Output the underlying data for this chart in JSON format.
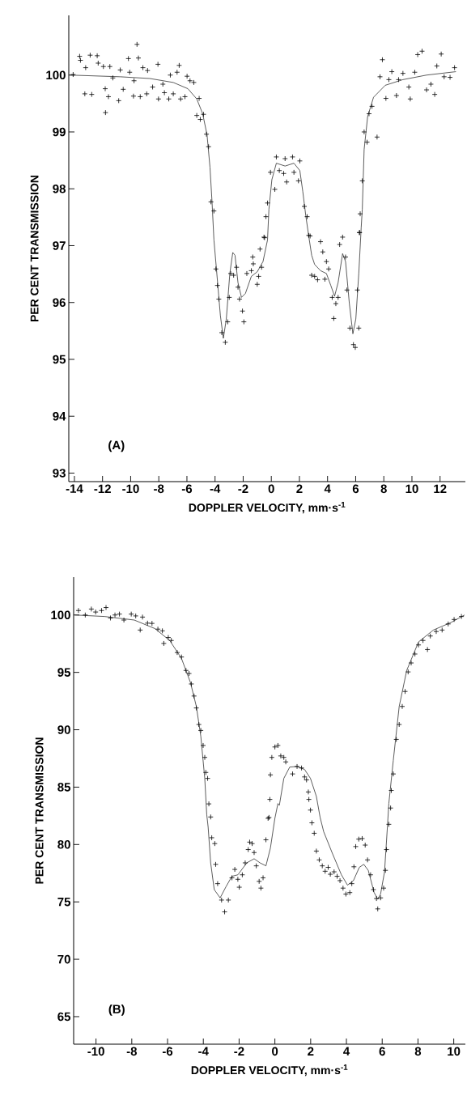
{
  "chart_data": [
    {
      "type": "scatter",
      "xlabel": "DOPPLER VELOCITY, mm·s$^{-1}$",
      "ylabel": "PER CENT TRANSMISSION",
      "annotations": [
        "(A)"
      ],
      "xlim": [
        -14.4,
        13.8
      ],
      "ylim": [
        92.85,
        101.05
      ],
      "xticks": [
        -14,
        -12,
        -10,
        -8,
        -6,
        -4,
        -2,
        0,
        2,
        4,
        6,
        8,
        10,
        12
      ],
      "yticks": [
        93,
        94,
        95,
        96,
        97,
        98,
        99,
        100
      ],
      "series": [
        {
          "color": "#000000",
          "marker": "cross",
          "x": [
            -14.09,
            -13.63,
            -13.57,
            -13.26,
            -13.2,
            -12.88,
            -12.77,
            -12.38,
            -12.31,
            -11.94,
            -11.81,
            -11.79,
            -11.58,
            -11.48,
            -11.27,
            -10.85,
            -10.74,
            -10.53,
            -10.16,
            -10.07,
            -9.8,
            -9.76,
            -9.55,
            -9.45,
            -9.32,
            -9.13,
            -8.86,
            -8.8,
            -8.44,
            -8.06,
            -8.02,
            -7.71,
            -7.6,
            -7.29,
            -7.18,
            -6.97,
            -6.7,
            -6.55,
            -6.45,
            -6.14,
            -5.99,
            -5.78,
            -5.51,
            -5.13,
            -5.3,
            -5.05,
            -4.82,
            -4.61,
            -4.46,
            -4.29,
            -4.08,
            -3.94,
            -3.83,
            -3.73,
            -3.52,
            -3.27,
            -3.1,
            -2.99,
            -2.89,
            -2.68,
            -2.47,
            -2.37,
            -2.26,
            -2.05,
            -1.95,
            -1.74,
            -1.42,
            -1.32,
            -1.28,
            -1.0,
            -0.9,
            -0.8,
            -0.69,
            -0.52,
            -0.48,
            -0.38,
            -0.27,
            -0.06,
            0.25,
            0.36,
            0.57,
            0.88,
            1.09,
            0.98,
            1.51,
            1.61,
            1.93,
            2.03,
            2.35,
            2.55,
            2.76,
            2.66,
            2.87,
            3.08,
            3.29,
            3.5,
            3.66,
            3.81,
            3.92,
            4.08,
            4.33,
            4.44,
            4.59,
            4.75,
            4.86,
            5.07,
            5.28,
            5.38,
            5.59,
            5.84,
            5.97,
            6.22,
            6.12,
            6.28,
            6.26,
            6.32,
            6.47,
            6.6,
            6.81,
            6.95,
            7.16,
            7.52,
            7.73,
            7.9,
            8.15,
            8.36,
            8.57,
            8.9,
            9.05,
            9.36,
            9.78,
            9.88,
            10.2,
            10.41,
            10.72,
            11.04,
            11.35,
            11.62,
            11.77,
            12.08,
            12.29,
            12.71,
            13.03
          ],
          "values": [
            100.01,
            100.33,
            100.26,
            99.67,
            100.13,
            100.35,
            99.66,
            100.34,
            100.21,
            100.15,
            99.76,
            99.34,
            99.62,
            100.15,
            99.95,
            99.55,
            100.09,
            99.75,
            100.29,
            100.05,
            99.63,
            99.9,
            100.54,
            100.3,
            99.62,
            100.13,
            99.67,
            100.08,
            99.79,
            100.19,
            99.58,
            99.84,
            99.69,
            99.58,
            100.0,
            99.67,
            100.05,
            100.17,
            99.58,
            99.62,
            99.98,
            99.9,
            99.87,
            99.59,
            99.29,
            99.22,
            99.31,
            98.96,
            98.74,
            97.77,
            97.61,
            96.59,
            96.3,
            96.06,
            95.47,
            95.3,
            95.66,
            96.09,
            96.51,
            96.48,
            96.62,
            96.27,
            96.06,
            95.85,
            95.66,
            96.51,
            96.56,
            96.8,
            96.68,
            96.32,
            96.46,
            96.94,
            96.62,
            97.15,
            97.14,
            97.51,
            97.75,
            98.29,
            97.99,
            98.56,
            98.32,
            98.27,
            98.12,
            98.53,
            98.56,
            98.29,
            98.14,
            98.49,
            97.69,
            97.51,
            97.17,
            97.18,
            96.48,
            96.46,
            96.4,
            97.07,
            96.89,
            96.41,
            96.72,
            96.59,
            96.09,
            95.72,
            95.98,
            96.09,
            97.02,
            97.15,
            96.8,
            96.22,
            95.55,
            95.26,
            95.21,
            95.55,
            96.22,
            97.23,
            97.23,
            97.56,
            98.14,
            99.0,
            98.82,
            99.32,
            99.45,
            98.91,
            99.97,
            100.27,
            99.59,
            99.92,
            100.06,
            99.64,
            99.92,
            100.03,
            99.79,
            99.58,
            100.05,
            100.36,
            100.42,
            99.74,
            99.84,
            99.66,
            100.16,
            100.37,
            99.97,
            99.96,
            100.13
          ]
        },
        {
          "type": "line",
          "color": "#333333",
          "marker": "none",
          "line_style": "solid",
          "x": [
            -14.3,
            -10.74,
            -8.65,
            -6.97,
            -5.93,
            -5.3,
            -4.88,
            -4.57,
            -4.36,
            -4.21,
            -4.08,
            -3.87,
            -3.62,
            -3.41,
            -3.2,
            -2.95,
            -2.74,
            -2.58,
            -2.37,
            -2.12,
            -1.84,
            -1.42,
            -1.0,
            -0.59,
            -0.27,
            -0.17,
            0.04,
            0.36,
            0.98,
            1.61,
            2.03,
            2.24,
            2.45,
            2.66,
            2.87,
            3.08,
            3.5,
            3.92,
            4.23,
            4.5,
            4.75,
            5.07,
            5.28,
            5.55,
            5.8,
            6.01,
            6.22,
            6.39,
            6.47,
            6.6,
            6.85,
            7.27,
            8.1,
            9.36,
            11.04,
            13.13
          ],
          "values": [
            100.0,
            99.97,
            99.94,
            99.87,
            99.76,
            99.58,
            99.32,
            98.95,
            98.38,
            97.75,
            97.1,
            96.5,
            95.77,
            95.37,
            95.71,
            96.51,
            96.88,
            96.83,
            96.35,
            96.09,
            96.16,
            96.46,
            96.54,
            96.72,
            97.1,
            97.64,
            98.16,
            98.45,
            98.4,
            98.45,
            98.32,
            97.95,
            97.53,
            97.17,
            96.83,
            96.67,
            96.56,
            96.51,
            96.3,
            96.11,
            96.35,
            96.86,
            96.72,
            95.98,
            95.45,
            95.71,
            96.51,
            97.31,
            97.64,
            98.69,
            99.27,
            99.61,
            99.82,
            99.92,
            100.0,
            100.06
          ]
        }
      ]
    },
    {
      "type": "scatter",
      "xlabel": "DOPPLER VELOCITY, mm·s$^{-1}$",
      "ylabel": "PER CENT TRANSMISSION",
      "annotations": [
        "(B)"
      ],
      "xlim": [
        -11.25,
        10.65
      ],
      "ylim": [
        62.6,
        103.3
      ],
      "xticks": [
        -10,
        -8,
        -6,
        -4,
        -2,
        0,
        2,
        4,
        6,
        8,
        10
      ],
      "yticks": [
        65,
        70,
        75,
        80,
        85,
        90,
        95,
        100
      ],
      "series": [
        {
          "color": "#000000",
          "marker": "cross",
          "x": [
            -10.98,
            -10.6,
            -10.26,
            -10.02,
            -9.69,
            -9.44,
            -9.19,
            -8.94,
            -8.69,
            -8.44,
            -8.03,
            -7.78,
            -7.53,
            -7.4,
            -7.12,
            -6.87,
            -6.54,
            -6.29,
            -6.21,
            -5.96,
            -5.79,
            -5.46,
            -5.22,
            -4.97,
            -4.8,
            -4.67,
            -4.52,
            -4.39,
            -4.25,
            -4.14,
            -4.01,
            -3.92,
            -3.86,
            -3.76,
            -3.69,
            -3.59,
            -3.53,
            -3.36,
            -3.31,
            -3.2,
            -2.98,
            -2.81,
            -2.6,
            -2.4,
            -2.24,
            -2.07,
            -1.99,
            -1.82,
            -1.66,
            -1.49,
            -1.41,
            -1.27,
            -1.16,
            -1.04,
            -0.88,
            -0.78,
            -0.66,
            -0.5,
            -0.38,
            -0.33,
            -0.28,
            -0.25,
            -0.17,
            0.0,
            0.17,
            0.33,
            0.5,
            0.61,
            0.99,
            1.24,
            1.49,
            1.66,
            1.77,
            1.87,
            1.9,
            1.99,
            2.07,
            2.2,
            2.32,
            2.48,
            2.65,
            2.81,
            2.98,
            3.1,
            3.31,
            3.48,
            3.64,
            3.81,
            3.97,
            4.19,
            4.3,
            4.42,
            4.52,
            4.69,
            4.88,
            5.05,
            5.18,
            5.35,
            5.51,
            5.68,
            5.75,
            5.91,
            6.08,
            6.18,
            6.24,
            6.37,
            6.47,
            6.51,
            6.62,
            6.79,
            6.95,
            7.12,
            7.28,
            7.45,
            7.62,
            7.83,
            8.03,
            8.28,
            8.53,
            8.69,
            9.02,
            9.35,
            9.69,
            10.02,
            10.43
          ],
          "values": [
            100.39,
            100.0,
            100.52,
            100.26,
            100.39,
            100.65,
            99.74,
            100.0,
            100.08,
            99.56,
            100.08,
            99.92,
            98.69,
            99.82,
            99.29,
            99.27,
            98.77,
            98.62,
            97.52,
            98.04,
            97.78,
            96.73,
            96.34,
            95.17,
            94.9,
            93.99,
            92.94,
            91.9,
            90.46,
            89.94,
            88.63,
            87.59,
            86.28,
            85.76,
            83.54,
            82.4,
            80.59,
            80.08,
            78.27,
            76.59,
            75.16,
            74.13,
            75.16,
            77.1,
            77.83,
            76.97,
            76.28,
            77.36,
            78.4,
            79.56,
            80.21,
            80.08,
            79.3,
            78.14,
            76.79,
            76.2,
            77.1,
            80.41,
            82.28,
            82.36,
            83.93,
            86.07,
            87.59,
            88.5,
            88.63,
            87.72,
            87.59,
            87.2,
            86.15,
            86.8,
            86.67,
            85.89,
            85.63,
            84.58,
            83.93,
            83.0,
            81.89,
            80.98,
            79.43,
            78.66,
            78.14,
            77.67,
            78.01,
            77.41,
            77.62,
            77.23,
            76.85,
            76.2,
            75.68,
            75.81,
            76.59,
            78.06,
            79.82,
            80.47,
            80.52,
            79.95,
            78.66,
            77.36,
            76.07,
            75.29,
            74.39,
            75.35,
            76.2,
            77.75,
            79.56,
            81.76,
            83.18,
            84.71,
            86.15,
            89.16,
            90.46,
            92.03,
            93.34,
            95.04,
            95.82,
            96.6,
            97.39,
            97.78,
            96.99,
            98.17,
            98.56,
            98.69,
            99.22,
            99.61,
            99.87
          ]
        },
        {
          "type": "line",
          "color": "#333333",
          "marker": "none",
          "line_style": "solid",
          "x": [
            -11.18,
            -9.52,
            -7.86,
            -6.71,
            -5.88,
            -5.22,
            -4.72,
            -4.39,
            -4.14,
            -3.92,
            -3.81,
            -3.73,
            -3.59,
            -3.39,
            -3.06,
            -2.73,
            -2.4,
            -2.07,
            -1.57,
            -1.16,
            -0.83,
            -0.5,
            -0.25,
            0.0,
            0.17,
            0.25,
            0.5,
            0.83,
            1.24,
            1.66,
            1.99,
            2.32,
            2.53,
            2.73,
            3.23,
            3.72,
            4.06,
            4.39,
            4.72,
            4.97,
            5.22,
            5.55,
            5.75,
            5.91,
            6.13,
            6.29,
            6.37,
            6.62,
            6.95,
            7.37,
            8.03,
            8.86,
            9.85,
            10.6
          ],
          "values": [
            100.0,
            99.87,
            99.56,
            98.82,
            97.78,
            96.21,
            94.12,
            92.03,
            89.42,
            85.76,
            82.62,
            81.5,
            78.4,
            76.07,
            75.35,
            76.33,
            77.23,
            77.36,
            78.4,
            78.76,
            78.4,
            78.14,
            79.69,
            82.28,
            83.57,
            83.41,
            85.76,
            86.75,
            86.8,
            86.54,
            85.76,
            84.19,
            82.36,
            81.11,
            79.17,
            77.36,
            76.46,
            76.85,
            78.01,
            78.27,
            77.75,
            75.81,
            75.24,
            75.68,
            77.62,
            81.5,
            83.57,
            87.33,
            92.03,
            95.17,
            97.65,
            98.69,
            99.35,
            100.0
          ]
        }
      ]
    }
  ]
}
